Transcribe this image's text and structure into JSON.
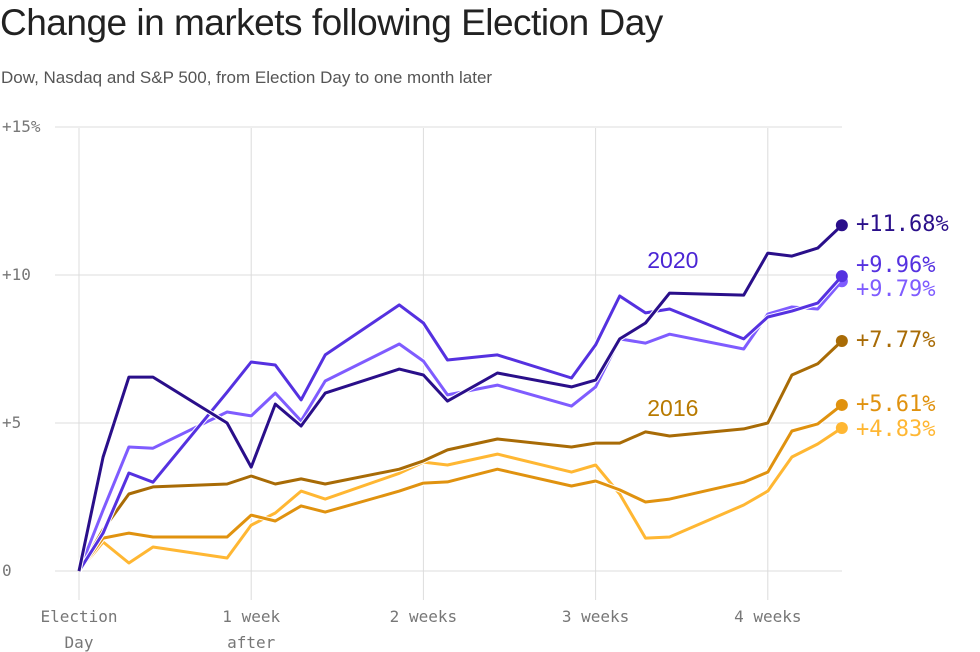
{
  "title": "Change in markets following Election Day",
  "subtitle": "Dow, Nasdaq and S&P 500, from Election Day to one month later",
  "chart_data": {
    "type": "line",
    "title": "Change in markets following Election Day",
    "subtitle": "Dow, Nasdaq and S&P 500, from Election Day to one month later",
    "xlim": [
      0,
      4.43
    ],
    "ylim": [
      0,
      15
    ],
    "grid": true,
    "x_ticks": [
      {
        "value": 0,
        "lines": [
          "Election",
          "Day"
        ]
      },
      {
        "value": 1,
        "lines": [
          "1 week",
          "after"
        ]
      },
      {
        "value": 2,
        "lines": [
          "2 weeks"
        ]
      },
      {
        "value": 3,
        "lines": [
          "3 weeks"
        ]
      },
      {
        "value": 4,
        "lines": [
          "4 weeks"
        ]
      }
    ],
    "y_ticks": [
      {
        "value": 15,
        "label": "+15%"
      },
      {
        "value": 10,
        "label": "+10"
      },
      {
        "value": 5,
        "label": "+5"
      },
      {
        "value": 0,
        "label": "0"
      }
    ],
    "x": [
      0,
      0.14,
      0.29,
      0.43,
      0.86,
      1,
      1.14,
      1.29,
      1.43,
      1.86,
      2,
      2.14,
      2.43,
      2.86,
      3,
      3.14,
      3.29,
      3.43,
      3.86,
      4,
      4.14,
      4.29,
      4.43
    ],
    "annotations": [
      {
        "text": "2020",
        "color": "#4a25d4",
        "x": 3.3,
        "y": 10.5
      },
      {
        "text": "2016",
        "color": "#b87a00",
        "x": 3.3,
        "y": 5.5
      }
    ],
    "series": [
      {
        "color": "#2a0f8a",
        "end_label": "+11.68%",
        "values": [
          0,
          3.85,
          6.55,
          6.55,
          5.0,
          3.51,
          5.64,
          4.9,
          6.01,
          6.82,
          6.62,
          5.74,
          6.69,
          6.22,
          6.45,
          7.84,
          8.38,
          9.39,
          9.32,
          10.74,
          10.64,
          10.91,
          11.68
        ]
      },
      {
        "color": "#5531e0",
        "end_label": "+9.96%",
        "values": [
          0,
          1.28,
          3.31,
          3.0,
          6.04,
          7.06,
          6.96,
          5.78,
          7.3,
          8.99,
          8.38,
          7.13,
          7.3,
          6.52,
          7.64,
          9.29,
          8.72,
          8.85,
          7.84,
          8.58,
          8.78,
          9.05,
          9.96
        ]
      },
      {
        "color": "#7f5cff",
        "end_label": "+9.79%",
        "values": [
          0,
          2.06,
          4.19,
          4.15,
          5.37,
          5.24,
          6.01,
          5.07,
          6.42,
          7.67,
          7.09,
          5.95,
          6.28,
          5.57,
          6.22,
          7.84,
          7.7,
          8.0,
          7.5,
          8.68,
          8.92,
          8.85,
          9.79
        ]
      },
      {
        "color": "#a86b06",
        "end_label": "+7.77%",
        "values": [
          0,
          1.4,
          2.6,
          2.84,
          2.94,
          3.21,
          2.94,
          3.11,
          2.94,
          3.44,
          3.72,
          4.09,
          4.46,
          4.19,
          4.32,
          4.32,
          4.7,
          4.56,
          4.8,
          5.0,
          6.62,
          7.0,
          7.77
        ]
      },
      {
        "color": "#e0920f",
        "end_label": "+5.61%",
        "values": [
          0,
          1.11,
          1.28,
          1.15,
          1.15,
          1.89,
          1.69,
          2.2,
          1.99,
          2.7,
          2.97,
          3.01,
          3.44,
          2.87,
          3.04,
          2.74,
          2.33,
          2.43,
          3.0,
          3.34,
          4.73,
          4.97,
          5.61
        ]
      },
      {
        "color": "#ffb733",
        "end_label": "+4.83%",
        "values": [
          0,
          0.98,
          0.27,
          0.81,
          0.44,
          1.55,
          1.96,
          2.7,
          2.43,
          3.3,
          3.68,
          3.58,
          3.95,
          3.34,
          3.58,
          2.6,
          1.11,
          1.15,
          2.23,
          2.7,
          3.85,
          4.29,
          4.83
        ]
      }
    ]
  }
}
